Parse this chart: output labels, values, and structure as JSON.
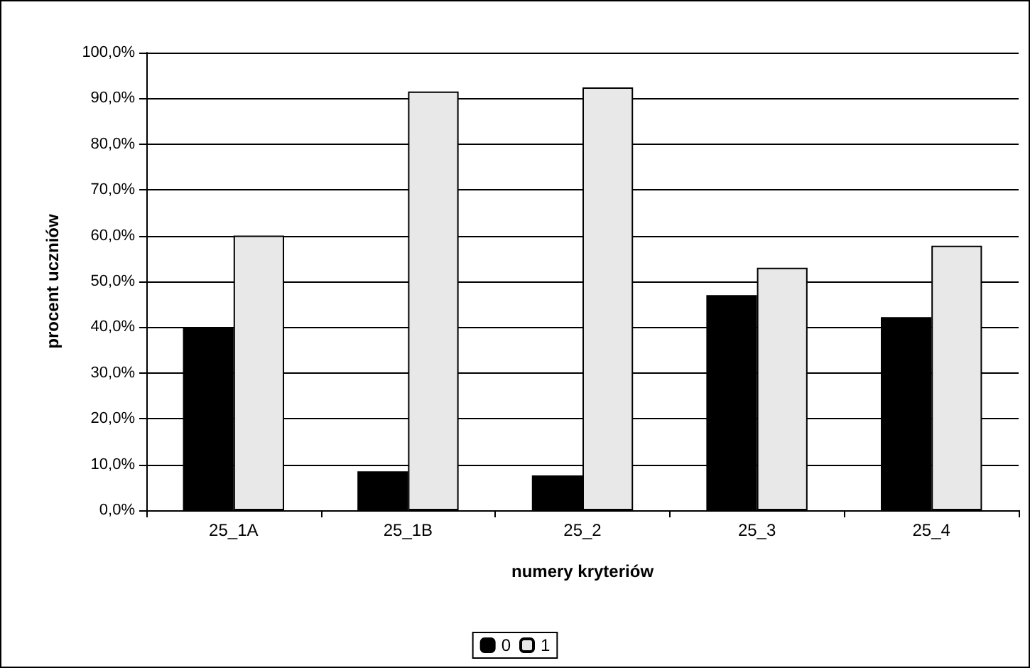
{
  "chart_data": {
    "type": "bar",
    "xlabel": "numery kryteriów",
    "ylabel": "procent uczniów",
    "categories": [
      "25_1A",
      "25_1B",
      "25_2",
      "25_3",
      "25_4"
    ],
    "series": [
      {
        "name": "0",
        "color": "#000000",
        "values": [
          40.0,
          8.5,
          7.6,
          47.0,
          42.2
        ]
      },
      {
        "name": "1",
        "color": "#e8e8e8",
        "values": [
          60.0,
          91.5,
          92.4,
          53.0,
          57.8
        ]
      }
    ],
    "ylim": [
      0,
      100
    ],
    "yticks": [
      {
        "value": 0,
        "label": "0,0%"
      },
      {
        "value": 10,
        "label": "10,0%"
      },
      {
        "value": 20,
        "label": "20,0%"
      },
      {
        "value": 30,
        "label": "30,0%"
      },
      {
        "value": 40,
        "label": "40,0%"
      },
      {
        "value": 50,
        "label": "50,0%"
      },
      {
        "value": 60,
        "label": "60,0%"
      },
      {
        "value": 70,
        "label": "70,0%"
      },
      {
        "value": 80,
        "label": "80,0%"
      },
      {
        "value": 90,
        "label": "90,0%"
      },
      {
        "value": 100,
        "label": "100,0%"
      }
    ],
    "grid": "y",
    "legend": "bottom"
  }
}
